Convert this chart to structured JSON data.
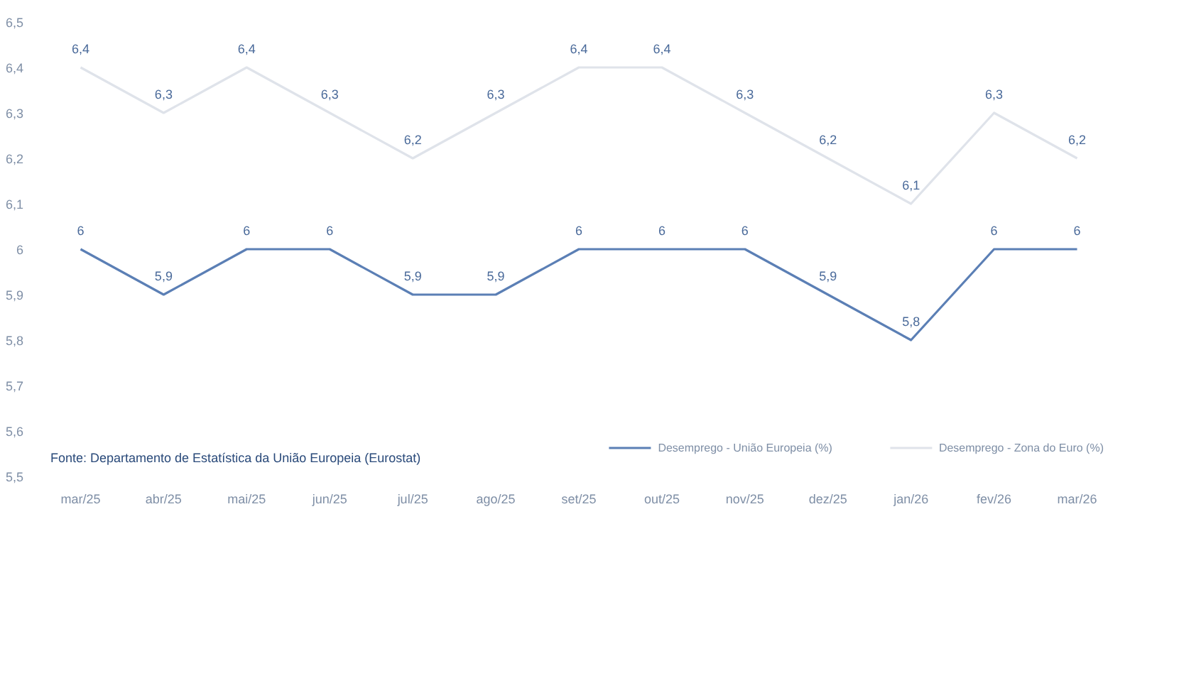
{
  "chart_data": {
    "type": "line",
    "categories": [
      "mar/25",
      "abr/25",
      "mai/25",
      "jun/25",
      "jul/25",
      "ago/25",
      "set/25",
      "out/25",
      "nov/25",
      "dez/25",
      "jan/26",
      "fev/26",
      "mar/26"
    ],
    "series": [
      {
        "name": "Desemprego - União Europeia (%)",
        "color": "#5b7fb5",
        "values": [
          6,
          5.9,
          6,
          6,
          5.9,
          5.9,
          6,
          6,
          6,
          5.9,
          5.8,
          6,
          6
        ],
        "value_labels": [
          "6",
          "5,9",
          "6",
          "6",
          "5,9",
          "5,9",
          "6",
          "6",
          "6",
          "5,9",
          "5,8",
          "6",
          "6"
        ]
      },
      {
        "name": "Desemprego - Zona do Euro (%)",
        "color": "#dfe3ea",
        "values": [
          6.4,
          6.3,
          6.4,
          6.3,
          6.2,
          6.3,
          6.4,
          6.4,
          6.3,
          6.2,
          6.1,
          6.3,
          6.2
        ],
        "value_labels": [
          "6,4",
          "6,3",
          "6,4",
          "6,3",
          "6,2",
          "6,3",
          "6,4",
          "6,4",
          "6,3",
          "6,2",
          "6,1",
          "6,3",
          "6,2"
        ]
      }
    ],
    "ylim": [
      5.5,
      6.5
    ],
    "yticks": [
      {
        "value": 5.5,
        "label": "5,5"
      },
      {
        "value": 5.6,
        "label": "5,6"
      },
      {
        "value": 5.7,
        "label": "5,7"
      },
      {
        "value": 5.8,
        "label": "5,8"
      },
      {
        "value": 5.9,
        "label": "5,9"
      },
      {
        "value": 6,
        "label": "6"
      },
      {
        "value": 6.1,
        "label": "6,1"
      },
      {
        "value": 6.2,
        "label": "6,2"
      },
      {
        "value": 6.3,
        "label": "6,3"
      },
      {
        "value": 6.4,
        "label": "6,4"
      },
      {
        "value": 6.5,
        "label": "6,5"
      }
    ],
    "grid": false,
    "legend": "bottom",
    "marker": "none",
    "line_style": "solid",
    "annotations": [
      "Fonte: Departamento de Estatística da União Europeia (Eurostat)"
    ]
  }
}
